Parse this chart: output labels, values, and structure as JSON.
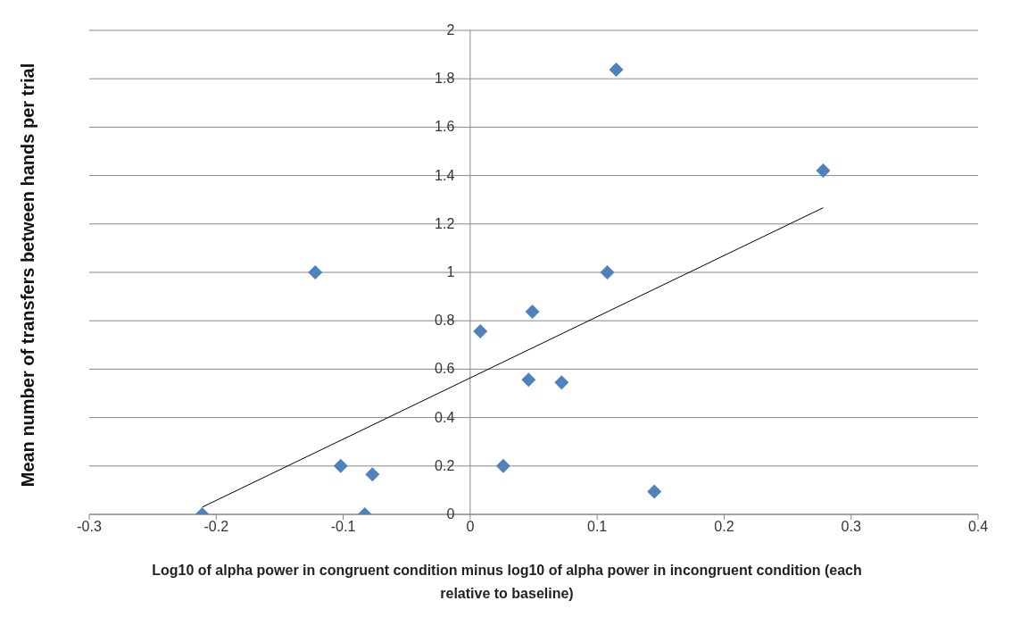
{
  "chart_data": {
    "type": "scatter",
    "xlabel": "Log10 of alpha power in congruent condition minus log10 of alpha power in incongruent condition (each relative to baseline)",
    "ylabel": "Mean number of transfers between hands per trial",
    "xlim": [
      -0.3,
      0.4
    ],
    "xticks": [
      -0.3,
      -0.2,
      -0.1,
      0,
      0.1,
      0.2,
      0.3,
      0.4
    ],
    "ylim": [
      0,
      2
    ],
    "yticks": [
      0,
      0.2,
      0.4,
      0.6,
      0.8,
      1,
      1.2,
      1.4,
      1.6,
      1.8,
      2
    ],
    "grid": "y",
    "legend": false,
    "series": [
      {
        "color": "#4f81bd",
        "marker": "diamond",
        "x": [
          -0.211,
          -0.122,
          -0.102,
          -0.083,
          -0.077,
          0.008,
          0.026,
          0.046,
          0.049,
          0.072,
          0.108,
          0.115,
          0.145,
          0.278
        ],
        "values": [
          0,
          1,
          0.2,
          0,
          0.165,
          0.756,
          0.2,
          0.556,
          0.838,
          0.545,
          1,
          1.838,
          0.094,
          1.421
        ]
      },
      {
        "type": "line",
        "marker": "none",
        "color": "#000000",
        "x": [
          -0.211,
          0.278
        ],
        "values": [
          0.03,
          1.267
        ]
      }
    ]
  }
}
